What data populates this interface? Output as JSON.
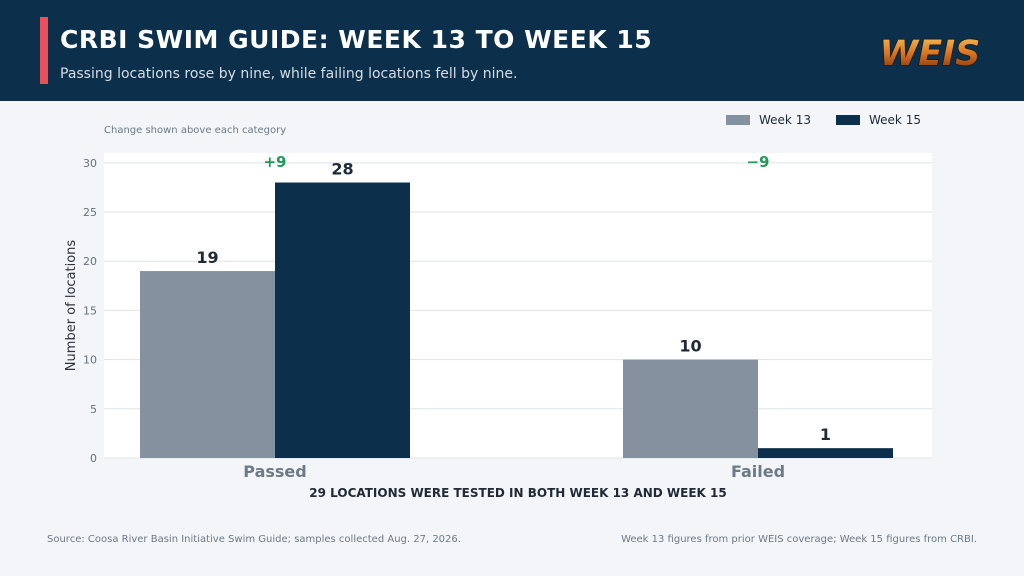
{
  "header": {
    "title": "CRBI SWIM GUIDE: WEEK 13 TO WEEK 15",
    "subtitle": "Passing locations rose by nine, while failing locations fell by nine.",
    "logo_text": "WEIS",
    "accent_color": "#e8505b"
  },
  "chart_data": {
    "type": "bar",
    "note": "Change shown above each category",
    "categories": [
      "Passed",
      "Failed"
    ],
    "series": [
      {
        "name": "Week 13",
        "values": [
          19,
          10
        ],
        "color": "#84929f"
      },
      {
        "name": "Week 15",
        "values": [
          28,
          1
        ],
        "color": "#0c2f4c"
      }
    ],
    "changes": [
      "+9",
      "−9"
    ],
    "change_color": "#1f9a57",
    "ylabel": "Number of locations",
    "xlabel": "29 LOCATIONS WERE TESTED IN BOTH WEEK 13 AND WEEK 15",
    "ylim": [
      0,
      31
    ],
    "yticks": [
      0,
      5,
      10,
      15,
      20,
      25,
      30
    ],
    "grid": true,
    "legend_position": "top-right"
  },
  "footer": {
    "source": "Source: Coosa River Basin Initiative Swim Guide; samples collected Aug. 27, 2026.",
    "note": "Week 13 figures from prior WEIS coverage; Week 15 figures from CRBI."
  }
}
